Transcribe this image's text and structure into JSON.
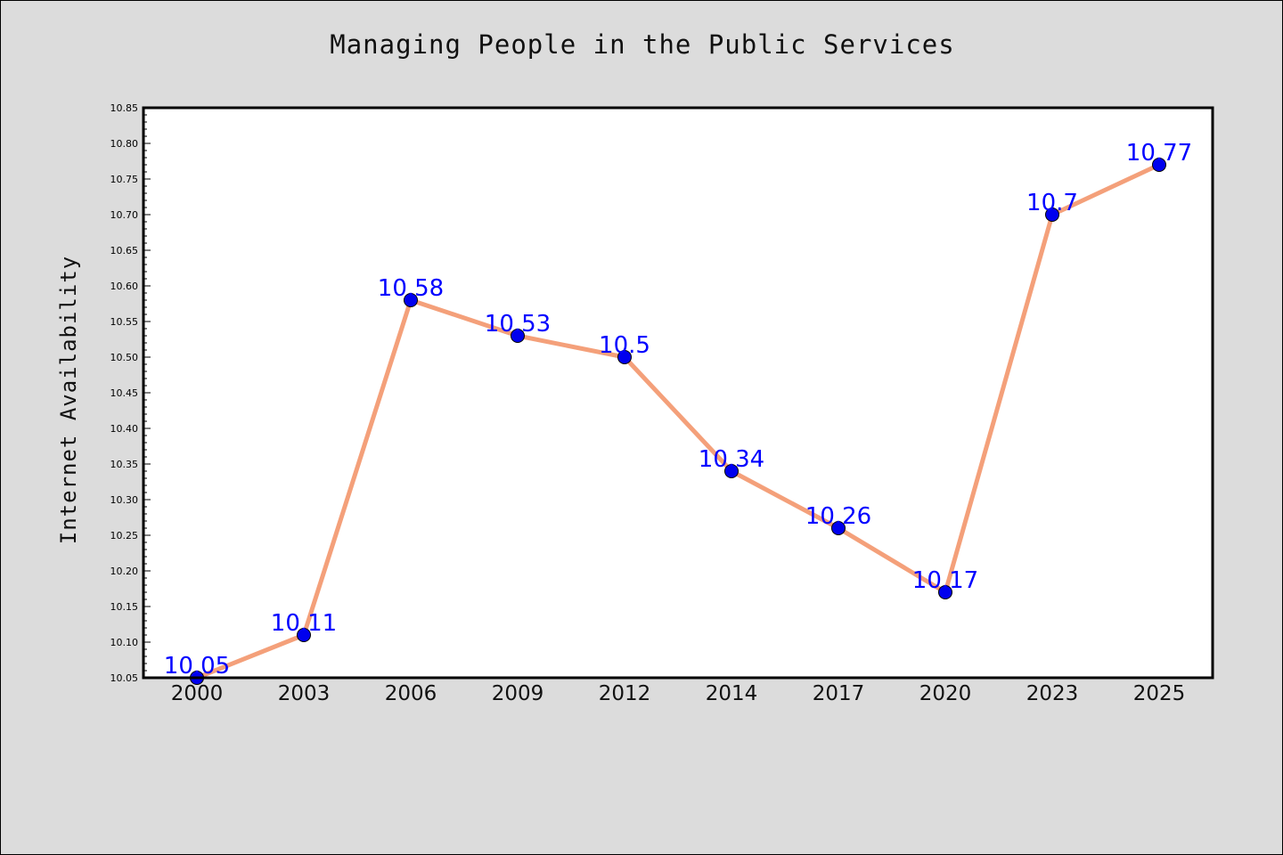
{
  "chart_data": {
    "type": "line",
    "title": "Managing People in the Public Services",
    "xlabel": "",
    "ylabel": "Internet Availability",
    "categories": [
      "2000",
      "2003",
      "2006",
      "2009",
      "2012",
      "2014",
      "2017",
      "2020",
      "2023",
      "2025"
    ],
    "series": [
      {
        "values": [
          10.05,
          10.11,
          10.58,
          10.53,
          10.5,
          10.34,
          10.26,
          10.17,
          10.7,
          10.77
        ],
        "data_labels": [
          "10.05",
          "10.11",
          "10.58",
          "10.53",
          "10.5",
          "10.34",
          "10.26",
          "10.17",
          "10.7",
          "10.77"
        ]
      }
    ],
    "ylim": [
      10.05,
      10.85
    ],
    "yticks": [
      "10.05",
      "10.10",
      "10.15",
      "10.20",
      "10.25",
      "10.30",
      "10.35",
      "10.40",
      "10.45",
      "10.50",
      "10.55",
      "10.60",
      "10.65",
      "10.70",
      "10.75",
      "10.80",
      "10.85"
    ],
    "grid": false,
    "legend": "none",
    "colors": {
      "line": "#f4a07a",
      "marker": "#0000ee",
      "data_label": "#0000ff",
      "background": "#dcdcdc",
      "plot_area": "#ffffff"
    }
  }
}
